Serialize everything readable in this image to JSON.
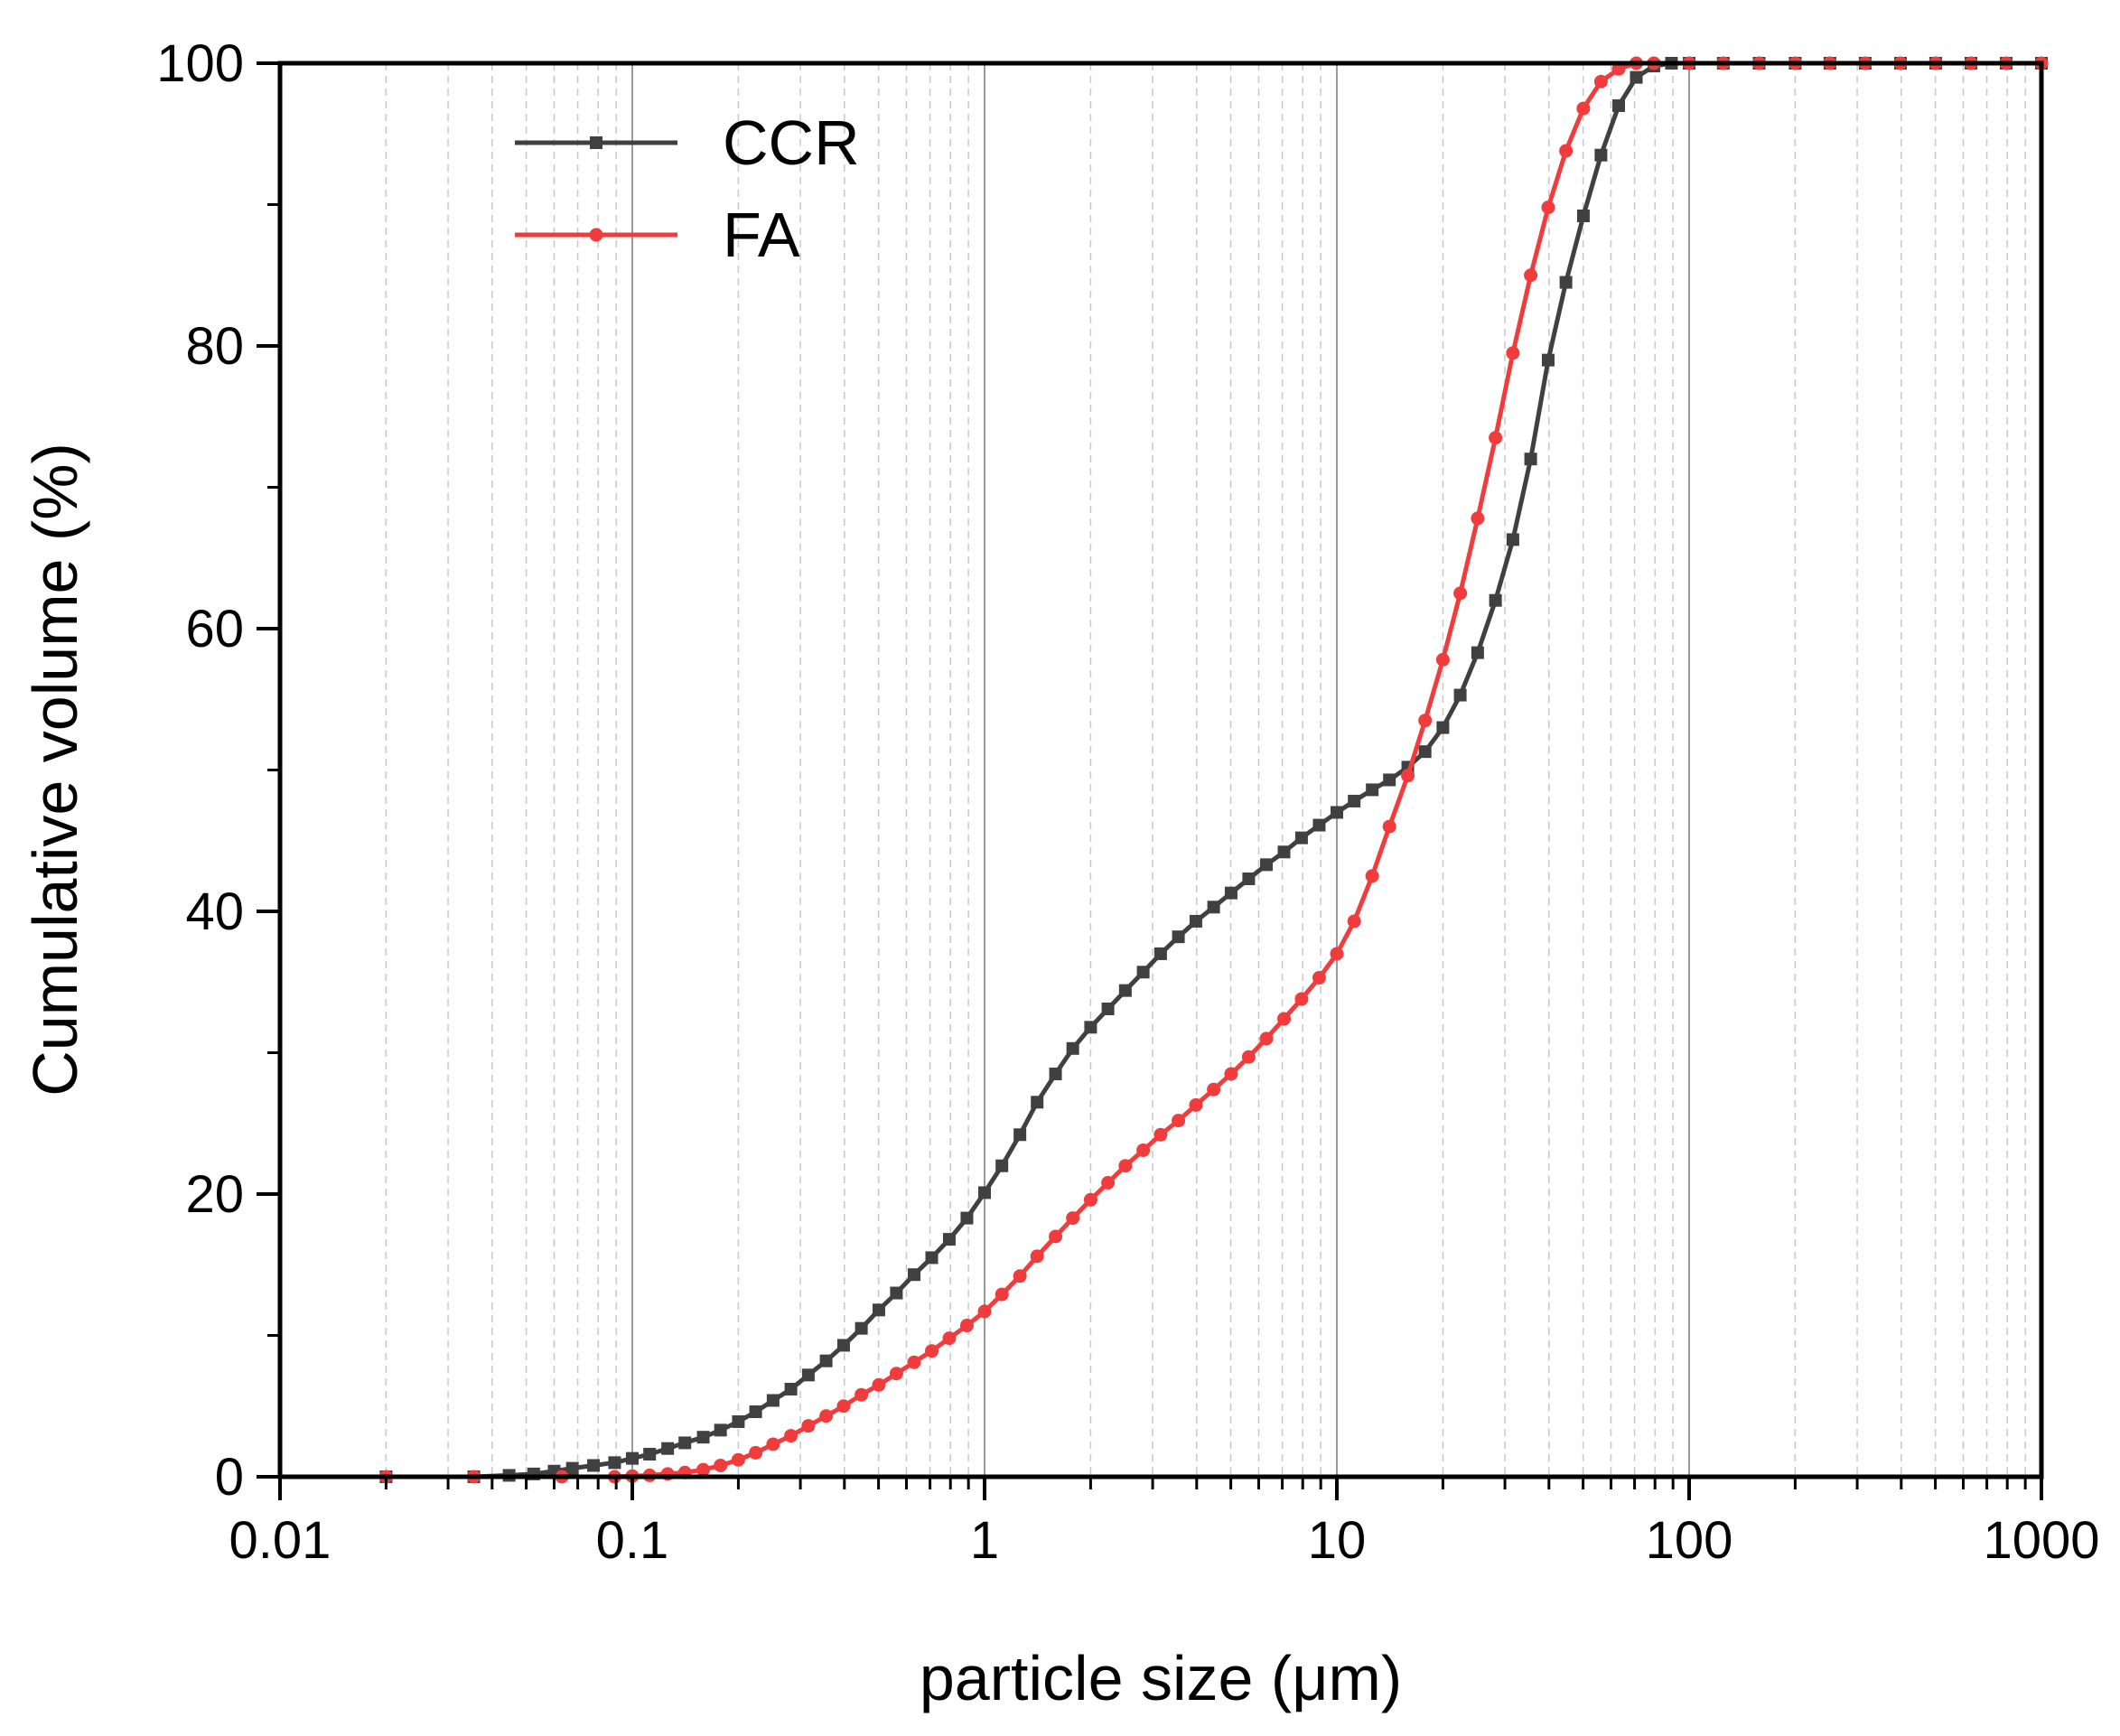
{
  "chart_data": {
    "type": "line",
    "title": "",
    "xlabel": "particle size (μm)",
    "ylabel": "Cumulative volume (%)",
    "x_scale": "log",
    "xlim": [
      0.01,
      1000
    ],
    "ylim": [
      0,
      100
    ],
    "x_ticks": [
      0.01,
      0.1,
      1,
      10,
      100,
      1000
    ],
    "x_tick_labels": [
      "0.01",
      "0.1",
      "1",
      "10",
      "100",
      "1000"
    ],
    "y_ticks": [
      0,
      20,
      40,
      60,
      80,
      100
    ],
    "y_tick_labels": [
      "0",
      "20",
      "40",
      "60",
      "80",
      "100"
    ],
    "grid": "vertical major and minor",
    "legend_position": "top-left",
    "series": [
      {
        "name": "CCR",
        "color": "#404040",
        "marker": "square",
        "points": [
          [
            0.02,
            0
          ],
          [
            0.0355,
            0
          ],
          [
            0.0447,
            0.1
          ],
          [
            0.0525,
            0.2
          ],
          [
            0.06,
            0.4
          ],
          [
            0.0676,
            0.6
          ],
          [
            0.0776,
            0.8
          ],
          [
            0.0891,
            1.0
          ],
          [
            0.1,
            1.3
          ],
          [
            0.112,
            1.6
          ],
          [
            0.126,
            2.0
          ],
          [
            0.141,
            2.4
          ],
          [
            0.159,
            2.8
          ],
          [
            0.178,
            3.3
          ],
          [
            0.2,
            3.9
          ],
          [
            0.224,
            4.6
          ],
          [
            0.251,
            5.4
          ],
          [
            0.282,
            6.2
          ],
          [
            0.316,
            7.2
          ],
          [
            0.355,
            8.2
          ],
          [
            0.398,
            9.3
          ],
          [
            0.447,
            10.5
          ],
          [
            0.501,
            11.8
          ],
          [
            0.562,
            13.0
          ],
          [
            0.631,
            14.3
          ],
          [
            0.708,
            15.5
          ],
          [
            0.794,
            16.8
          ],
          [
            0.891,
            18.3
          ],
          [
            1.0,
            20.1
          ],
          [
            1.12,
            22.0
          ],
          [
            1.26,
            24.2
          ],
          [
            1.41,
            26.5
          ],
          [
            1.59,
            28.5
          ],
          [
            1.78,
            30.3
          ],
          [
            2.0,
            31.8
          ],
          [
            2.24,
            33.1
          ],
          [
            2.51,
            34.4
          ],
          [
            2.82,
            35.7
          ],
          [
            3.16,
            37.0
          ],
          [
            3.55,
            38.2
          ],
          [
            3.98,
            39.3
          ],
          [
            4.47,
            40.3
          ],
          [
            5.01,
            41.3
          ],
          [
            5.62,
            42.3
          ],
          [
            6.31,
            43.3
          ],
          [
            7.08,
            44.2
          ],
          [
            7.94,
            45.2
          ],
          [
            8.91,
            46.1
          ],
          [
            10.0,
            47.0
          ],
          [
            11.2,
            47.8
          ],
          [
            12.6,
            48.6
          ],
          [
            14.1,
            49.3
          ],
          [
            15.9,
            50.2
          ],
          [
            17.8,
            51.3
          ],
          [
            20.0,
            53.0
          ],
          [
            22.4,
            55.3
          ],
          [
            25.1,
            58.3
          ],
          [
            28.2,
            62.0
          ],
          [
            31.6,
            66.3
          ],
          [
            35.5,
            72.0
          ],
          [
            39.8,
            79.0
          ],
          [
            44.7,
            84.5
          ],
          [
            50.1,
            89.2
          ],
          [
            56.2,
            93.5
          ],
          [
            63.1,
            97.0
          ],
          [
            70.8,
            99.0
          ],
          [
            79.4,
            99.8
          ],
          [
            89.1,
            100
          ],
          [
            100,
            100
          ],
          [
            125,
            100
          ],
          [
            158,
            100
          ],
          [
            200,
            100
          ],
          [
            251,
            100
          ],
          [
            316,
            100
          ],
          [
            398,
            100
          ],
          [
            501,
            100
          ],
          [
            631,
            100
          ],
          [
            794,
            100
          ],
          [
            1000,
            100
          ]
        ]
      },
      {
        "name": "FA",
        "color": "#f03c3c",
        "marker": "circle",
        "points": [
          [
            0.02,
            0
          ],
          [
            0.0355,
            0
          ],
          [
            0.0631,
            0
          ],
          [
            0.0891,
            0
          ],
          [
            0.1,
            0.05
          ],
          [
            0.112,
            0.1
          ],
          [
            0.126,
            0.2
          ],
          [
            0.141,
            0.3
          ],
          [
            0.159,
            0.5
          ],
          [
            0.178,
            0.8
          ],
          [
            0.2,
            1.2
          ],
          [
            0.224,
            1.7
          ],
          [
            0.251,
            2.3
          ],
          [
            0.282,
            2.9
          ],
          [
            0.316,
            3.6
          ],
          [
            0.355,
            4.3
          ],
          [
            0.398,
            5.0
          ],
          [
            0.447,
            5.8
          ],
          [
            0.501,
            6.5
          ],
          [
            0.562,
            7.3
          ],
          [
            0.631,
            8.1
          ],
          [
            0.708,
            8.9
          ],
          [
            0.794,
            9.8
          ],
          [
            0.891,
            10.7
          ],
          [
            1.0,
            11.7
          ],
          [
            1.12,
            12.9
          ],
          [
            1.26,
            14.2
          ],
          [
            1.41,
            15.6
          ],
          [
            1.59,
            17.0
          ],
          [
            1.78,
            18.3
          ],
          [
            2.0,
            19.6
          ],
          [
            2.24,
            20.8
          ],
          [
            2.51,
            22.0
          ],
          [
            2.82,
            23.1
          ],
          [
            3.16,
            24.2
          ],
          [
            3.55,
            25.2
          ],
          [
            3.98,
            26.3
          ],
          [
            4.47,
            27.4
          ],
          [
            5.01,
            28.5
          ],
          [
            5.62,
            29.7
          ],
          [
            6.31,
            31.0
          ],
          [
            7.08,
            32.4
          ],
          [
            7.94,
            33.8
          ],
          [
            8.91,
            35.3
          ],
          [
            10.0,
            37.0
          ],
          [
            11.2,
            39.3
          ],
          [
            12.6,
            42.5
          ],
          [
            14.1,
            46.0
          ],
          [
            15.9,
            49.6
          ],
          [
            17.8,
            53.5
          ],
          [
            20.0,
            57.8
          ],
          [
            22.4,
            62.5
          ],
          [
            25.1,
            67.8
          ],
          [
            28.2,
            73.5
          ],
          [
            31.6,
            79.5
          ],
          [
            35.5,
            85.0
          ],
          [
            39.8,
            89.8
          ],
          [
            44.7,
            93.8
          ],
          [
            50.1,
            96.8
          ],
          [
            56.2,
            98.7
          ],
          [
            63.1,
            99.6
          ],
          [
            70.8,
            100
          ],
          [
            79.4,
            100
          ],
          [
            100,
            100
          ],
          [
            125,
            100
          ],
          [
            158,
            100
          ],
          [
            200,
            100
          ],
          [
            251,
            100
          ],
          [
            316,
            100
          ],
          [
            398,
            100
          ],
          [
            501,
            100
          ],
          [
            631,
            100
          ],
          [
            794,
            100
          ],
          [
            1000,
            100
          ]
        ]
      }
    ]
  }
}
